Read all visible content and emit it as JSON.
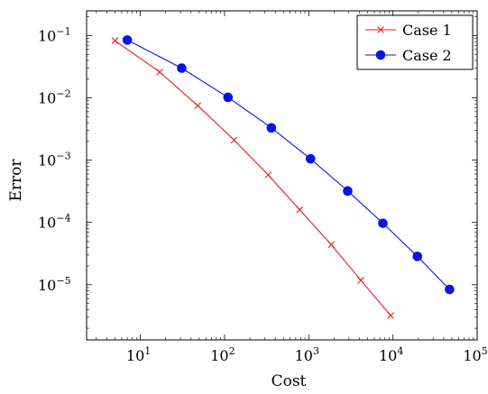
{
  "chart_data": {
    "type": "line",
    "title": "",
    "xlabel": "Cost",
    "ylabel": "Error",
    "xscale": "log",
    "yscale": "log",
    "xlim": [
      2.3,
      100000
    ],
    "ylim": [
      1.3e-06,
      0.25
    ],
    "grid": false,
    "legend_position": "top-right",
    "x_ticks": [
      {
        "base": "10",
        "exp": "1",
        "value": 10
      },
      {
        "base": "10",
        "exp": "2",
        "value": 100
      },
      {
        "base": "10",
        "exp": "3",
        "value": 1000
      },
      {
        "base": "10",
        "exp": "4",
        "value": 10000
      },
      {
        "base": "10",
        "exp": "5",
        "value": 100000
      }
    ],
    "y_ticks": [
      {
        "base": "10",
        "exp": "−5",
        "value": 1e-05
      },
      {
        "base": "10",
        "exp": "−4",
        "value": 0.0001
      },
      {
        "base": "10",
        "exp": "−3",
        "value": 0.001
      },
      {
        "base": "10",
        "exp": "−2",
        "value": 0.01
      },
      {
        "base": "10",
        "exp": "−1",
        "value": 0.1
      }
    ],
    "series": [
      {
        "name": "Case 1",
        "color": "#e8191c",
        "marker": "x",
        "x": [
          5,
          17,
          48,
          130,
          330,
          780,
          1850,
          4150,
          9400
        ],
        "y": [
          0.083,
          0.026,
          0.0075,
          0.0021,
          0.00058,
          0.00016,
          4.4e-05,
          1.18e-05,
          3.2e-06
        ]
      },
      {
        "name": "Case 2",
        "color": "#0a14e6",
        "marker": "circle",
        "x": [
          7,
          31,
          110,
          360,
          1050,
          2900,
          7600,
          19500,
          47000
        ],
        "y": [
          0.085,
          0.03,
          0.0102,
          0.0033,
          0.00105,
          0.00032,
          9.7e-05,
          2.85e-05,
          8.4e-06
        ]
      }
    ]
  }
}
